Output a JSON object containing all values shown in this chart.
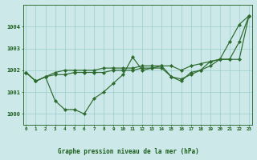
{
  "title": "Graphe pression niveau de la mer (hPa)",
  "x_hours": [
    0,
    1,
    2,
    3,
    4,
    5,
    6,
    7,
    8,
    9,
    10,
    11,
    12,
    13,
    14,
    15,
    16,
    17,
    18,
    19,
    20,
    21,
    22,
    23
  ],
  "series1": [
    1001.9,
    1001.5,
    1001.7,
    1000.6,
    1000.2,
    1000.2,
    1000.0,
    1000.7,
    1001.0,
    1001.4,
    1001.8,
    1002.6,
    1002.0,
    1002.1,
    1002.2,
    1001.7,
    1001.6,
    1001.8,
    1002.0,
    1002.4,
    1002.5,
    1003.3,
    1004.1,
    1004.5
  ],
  "series2": [
    1001.9,
    1001.5,
    1001.7,
    1001.8,
    1001.8,
    1001.9,
    1001.9,
    1001.9,
    1001.9,
    1002.0,
    1002.0,
    1002.0,
    1002.1,
    1002.1,
    1002.1,
    1001.7,
    1001.5,
    1001.9,
    1002.0,
    1002.2,
    1002.5,
    1002.5,
    1003.3,
    1004.5
  ],
  "series3": [
    1001.9,
    1001.5,
    1001.7,
    1001.9,
    1002.0,
    1002.0,
    1002.0,
    1002.0,
    1002.1,
    1002.1,
    1002.1,
    1002.1,
    1002.2,
    1002.2,
    1002.2,
    1002.2,
    1002.0,
    1002.2,
    1002.3,
    1002.4,
    1002.5,
    1002.5,
    1002.5,
    1004.5
  ],
  "line_color": "#2d6a2d",
  "bg_color": "#cce8e8",
  "grid_color": "#99cccc",
  "text_color": "#1a5c1a",
  "ylim": [
    999.5,
    1005.0
  ],
  "yticks": [
    1000,
    1001,
    1002,
    1003,
    1004
  ],
  "xlim": [
    -0.3,
    23.3
  ]
}
